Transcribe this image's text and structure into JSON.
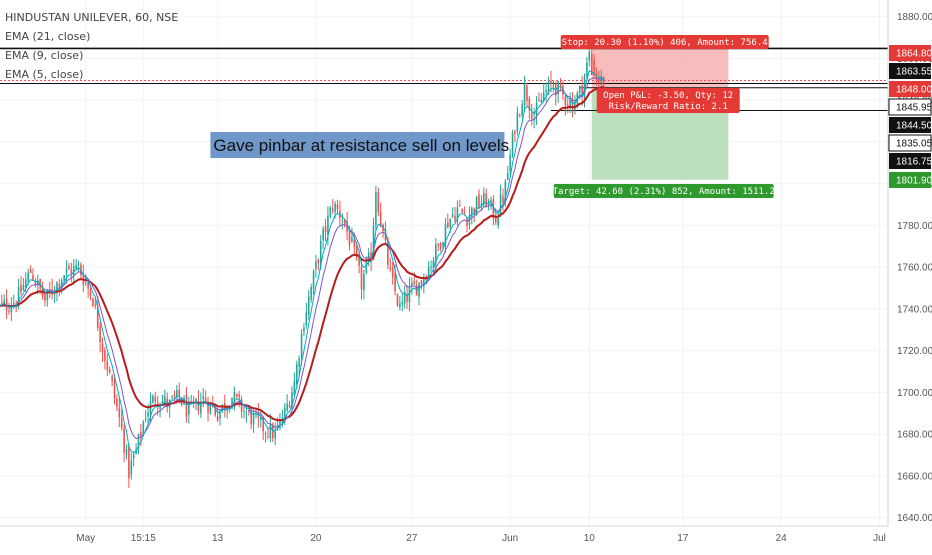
{
  "header": {
    "symbol": "HINDUSTAN UNILEVER, 60, NSE",
    "indicators": [
      "EMA (21, close)",
      "EMA (9, close)",
      "EMA (5, close)"
    ]
  },
  "colors": {
    "up": "#26a69a",
    "down": "#ef5350",
    "ema21": "#b71c1c",
    "ema9": "#7e57c2",
    "ema5": "#00acc1",
    "stop_zone": "#f4a6a6",
    "target_zone": "#a5d6a7",
    "stop_tag": "#e53935",
    "target_tag": "#2e9a2e",
    "black_tag": "#111111"
  },
  "chart_data": {
    "type": "candlestick",
    "title": "HINDUSTAN UNILEVER, 60, NSE",
    "ylim": [
      1636,
      1888
    ],
    "y_ticks": [
      1640,
      1660,
      1680,
      1700,
      1720,
      1740,
      1760,
      1780,
      1800,
      1820,
      1840,
      1860,
      1880
    ],
    "x_ticks": [
      {
        "label": "May",
        "i": 37
      },
      {
        "label": "15:15",
        "i": 61
      },
      {
        "label": "13",
        "i": 92
      },
      {
        "label": "20",
        "i": 133
      },
      {
        "label": "27",
        "i": 173
      },
      {
        "label": "Jun",
        "i": 214
      },
      {
        "label": "10",
        "i": 247
      },
      {
        "label": "17",
        "i": 286
      },
      {
        "label": "24",
        "i": 327
      },
      {
        "label": "Jul",
        "i": 368
      }
    ],
    "n_bars": 372,
    "close_anchors": [
      [
        0,
        1740
      ],
      [
        8,
        1744
      ],
      [
        14,
        1758
      ],
      [
        20,
        1744
      ],
      [
        28,
        1757
      ],
      [
        34,
        1760
      ],
      [
        40,
        1745
      ],
      [
        44,
        1722
      ],
      [
        48,
        1703
      ],
      [
        52,
        1682
      ],
      [
        55,
        1662
      ],
      [
        58,
        1672
      ],
      [
        62,
        1690
      ],
      [
        66,
        1698
      ],
      [
        72,
        1694
      ],
      [
        76,
        1698
      ],
      [
        80,
        1690
      ],
      [
        86,
        1697
      ],
      [
        92,
        1690
      ],
      [
        98,
        1698
      ],
      [
        104,
        1690
      ],
      [
        110,
        1684
      ],
      [
        116,
        1680
      ],
      [
        120,
        1690
      ],
      [
        124,
        1705
      ],
      [
        128,
        1735
      ],
      [
        132,
        1755
      ],
      [
        136,
        1775
      ],
      [
        140,
        1790
      ],
      [
        144,
        1784
      ],
      [
        148,
        1770
      ],
      [
        152,
        1752
      ],
      [
        156,
        1766
      ],
      [
        158,
        1798
      ],
      [
        160,
        1782
      ],
      [
        164,
        1756
      ],
      [
        168,
        1740
      ],
      [
        172,
        1748
      ],
      [
        176,
        1752
      ],
      [
        180,
        1760
      ],
      [
        184,
        1770
      ],
      [
        188,
        1782
      ],
      [
        192,
        1788
      ],
      [
        196,
        1784
      ],
      [
        200,
        1790
      ],
      [
        204,
        1792
      ],
      [
        208,
        1784
      ],
      [
        212,
        1798
      ],
      [
        216,
        1828
      ],
      [
        220,
        1846
      ],
      [
        224,
        1832
      ],
      [
        228,
        1843
      ],
      [
        232,
        1848
      ],
      [
        236,
        1842
      ],
      [
        240,
        1838
      ],
      [
        244,
        1846
      ],
      [
        247,
        1862
      ],
      [
        250,
        1851
      ],
      [
        253,
        1848
      ]
    ],
    "ema_lengths": [
      21,
      9,
      5
    ],
    "price_tags": [
      {
        "label": "1864.80",
        "value": 1864.8,
        "style": "red"
      },
      {
        "label": "1863.55",
        "value": 1863.55,
        "style": "black"
      },
      {
        "label": "1848.00",
        "value": 1848.0,
        "style": "red"
      },
      {
        "label": "1845.95",
        "value": 1845.95,
        "style": "outline"
      },
      {
        "label": "1844.50",
        "value": 1844.5,
        "style": "black"
      },
      {
        "label": "1835.05",
        "value": 1835.05,
        "style": "outline"
      },
      {
        "label": "1816.75",
        "value": 1816.75,
        "style": "black"
      },
      {
        "label": "1801.90",
        "value": 1801.9,
        "style": "green"
      }
    ],
    "position": {
      "entry": 1844.5,
      "stop": 1864.8,
      "target": 1801.9,
      "start_i": 248,
      "end_i": 305,
      "stop_label": "Stop: 20.30 (1.10%) 406, Amount: 756.4",
      "target_label": "Target: 42.60 (2.31%) 852, Amount: 1511.2",
      "pnl_label": "Open P&L: -3.50, Qty: 12",
      "rr_label": "Risk/Reward Ratio: 2.1"
    },
    "horizontal_lines": [
      {
        "value": 1864.8,
        "from_i": 0,
        "color": "#111111"
      },
      {
        "value": 1848.0,
        "from_i": 0,
        "color": "#111111"
      },
      {
        "value": 1845.95,
        "from_i": 243,
        "color": "#111111"
      },
      {
        "value": 1835.05,
        "from_i": 231,
        "color": "#111111"
      }
    ],
    "annotation": {
      "text": "Gave pinbar at resistance sell on levels",
      "i": 89,
      "value": 1819
    }
  }
}
